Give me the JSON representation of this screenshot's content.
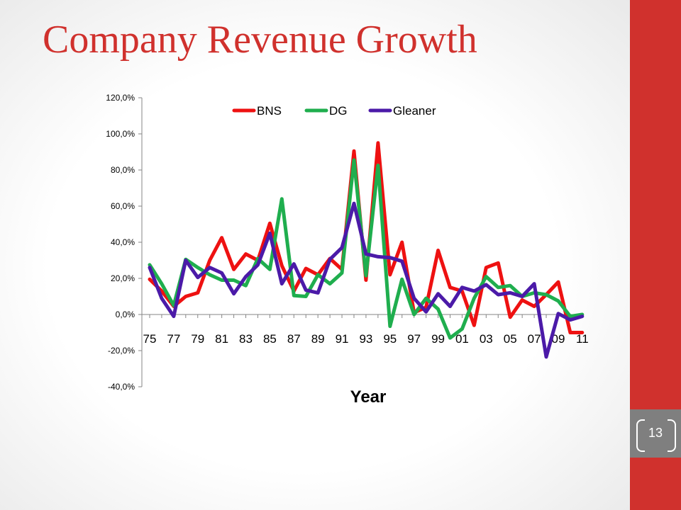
{
  "slide": {
    "title": "Company Revenue Growth",
    "page_number": "13"
  },
  "colors": {
    "accent": "#d0312d",
    "side_bar": "#d0312d",
    "page_box": "#7f7f7f",
    "bns": "#ee1111",
    "dg": "#1fae4e",
    "gleaner": "#4b1aa8"
  },
  "chart_data": {
    "type": "line",
    "title": "",
    "xlabel": "Year",
    "ylabel": "",
    "ylim": [
      -40,
      120
    ],
    "yticks": [
      -40,
      -20,
      0,
      20,
      40,
      60,
      80,
      100,
      120
    ],
    "ytick_labels": [
      "-40,0%",
      "-20,0%",
      "0,0%",
      "20,0%",
      "40,0%",
      "60,0%",
      "80,0%",
      "100,0%",
      "120,0%"
    ],
    "grid": false,
    "legend": "top",
    "categories": [
      "75",
      "76",
      "77",
      "78",
      "79",
      "80",
      "81",
      "82",
      "83",
      "84",
      "85",
      "86",
      "87",
      "88",
      "89",
      "90",
      "91",
      "92",
      "93",
      "94",
      "95",
      "96",
      "97",
      "98",
      "99",
      "00",
      "01",
      "02",
      "03",
      "04",
      "05",
      "06",
      "07",
      "08",
      "09",
      "10",
      "11"
    ],
    "xtick_labels": [
      "75",
      "77",
      "79",
      "81",
      "83",
      "85",
      "87",
      "89",
      "91",
      "93",
      "95",
      "97",
      "99",
      "01",
      "03",
      "05",
      "07",
      "09",
      "11"
    ],
    "series": [
      {
        "name": "BNS",
        "color": "#ee1111",
        "values": [
          19.5,
          13,
          4.5,
          10,
          12,
          30,
          42.5,
          25,
          33.5,
          30,
          50.5,
          27,
          13,
          25.5,
          22,
          31,
          25,
          90.5,
          19,
          95,
          22,
          40,
          1,
          4,
          35.5,
          15,
          13,
          -6,
          26,
          28.5,
          -1.5,
          8,
          4.5,
          11,
          18,
          -10,
          -10
        ]
      },
      {
        "name": "DG",
        "color": "#1fae4e",
        "values": [
          27.5,
          17,
          5,
          30.5,
          26,
          22,
          19,
          19,
          16,
          31,
          25,
          64,
          10.5,
          10,
          22,
          17,
          23,
          85.5,
          21.5,
          82.5,
          -6.5,
          19.5,
          0,
          9,
          3,
          -13,
          -8,
          9,
          21,
          15,
          16,
          10,
          12,
          11,
          7.5,
          -1,
          0
        ]
      },
      {
        "name": "Gleaner",
        "color": "#4b1aa8",
        "values": [
          26,
          9,
          -1,
          30,
          20.5,
          26,
          23,
          11.5,
          21,
          27.5,
          45,
          17,
          28,
          13.5,
          12,
          30.5,
          37,
          61.5,
          33.5,
          32,
          31.5,
          29.5,
          9,
          1.5,
          11.5,
          4.5,
          15,
          13,
          16.5,
          11,
          12,
          10,
          17,
          -23.5,
          0.5,
          -3,
          -1
        ]
      }
    ]
  }
}
